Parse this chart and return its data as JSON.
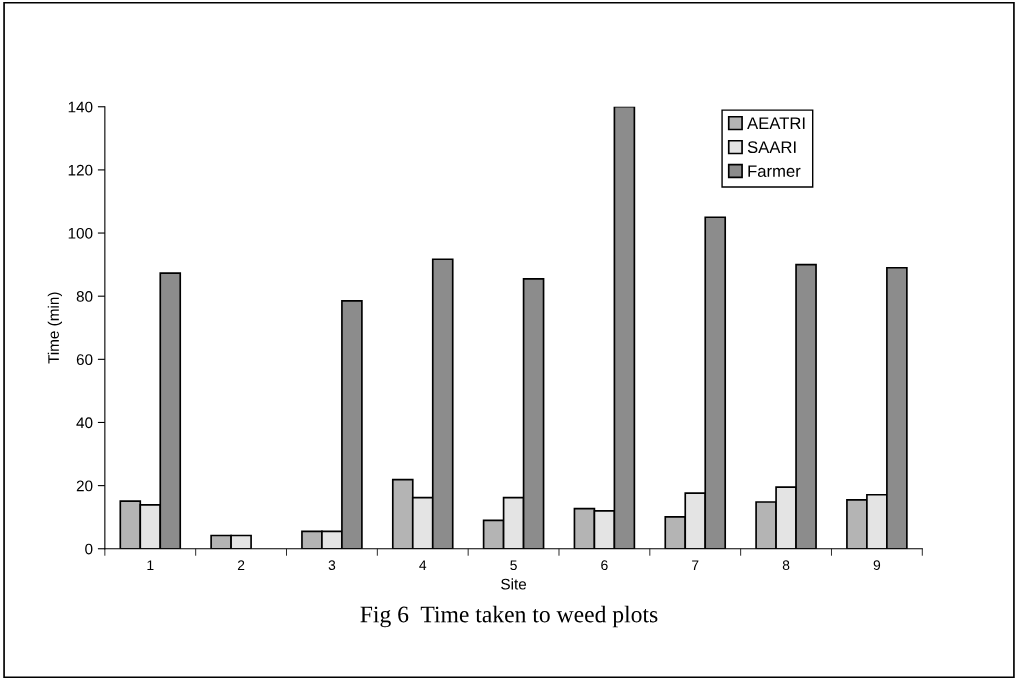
{
  "chart_data": {
    "type": "bar",
    "title": "Fig 6  Time taken to weed plots",
    "xlabel": "Site",
    "ylabel": "Time (min)",
    "categories": [
      "1",
      "2",
      "3",
      "4",
      "5",
      "6",
      "7",
      "8",
      "9"
    ],
    "series": [
      {
        "name": "AEATRI",
        "color": "#b4b4b4",
        "values": [
          15.1,
          4.2,
          5.5,
          21.9,
          9.0,
          12.7,
          10.1,
          14.8,
          15.5
        ]
      },
      {
        "name": "SAARI",
        "color": "#e4e4e4",
        "values": [
          13.9,
          4.2,
          5.5,
          16.2,
          16.2,
          12.0,
          17.6,
          19.5,
          17.1
        ]
      },
      {
        "name": "Farmer",
        "color": "#8c8c8c",
        "values": [
          87.3,
          null,
          78.5,
          91.7,
          85.5,
          140,
          105,
          90,
          89
        ]
      }
    ],
    "ylim": [
      0,
      140
    ],
    "yticks": [
      0,
      20,
      40,
      60,
      80,
      100,
      120,
      140
    ],
    "grid": false,
    "legend": "top right"
  }
}
